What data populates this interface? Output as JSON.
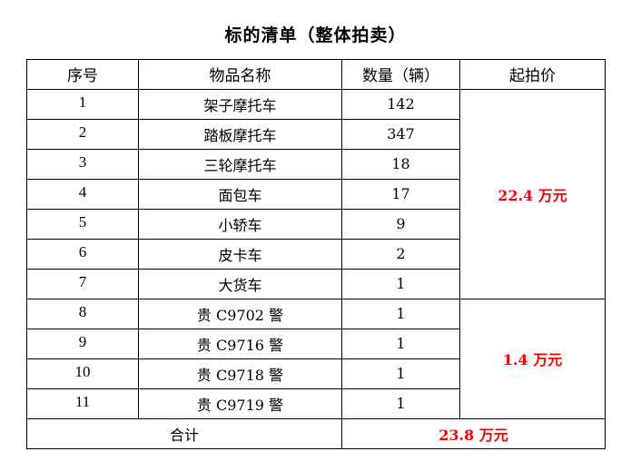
{
  "title": "标的清单（整体拍卖）",
  "headers": {
    "index": "序号",
    "name": "物品名称",
    "quantity": "数量（辆）",
    "price": "起拍价"
  },
  "rows": [
    {
      "index": "1",
      "name": "架子摩托车",
      "quantity": "142"
    },
    {
      "index": "2",
      "name": "踏板摩托车",
      "quantity": "347"
    },
    {
      "index": "3",
      "name": "三轮摩托车",
      "quantity": "18"
    },
    {
      "index": "4",
      "name": "面包车",
      "quantity": "17"
    },
    {
      "index": "5",
      "name": "小轿车",
      "quantity": "9"
    },
    {
      "index": "6",
      "name": "皮卡车",
      "quantity": "2"
    },
    {
      "index": "7",
      "name": "大货车",
      "quantity": "1"
    },
    {
      "index": "8",
      "name": "贵 C9702 警",
      "quantity": "1"
    },
    {
      "index": "9",
      "name": "贵 C9716 警",
      "quantity": "1"
    },
    {
      "index": "10",
      "name": "贵 C9718 警",
      "quantity": "1"
    },
    {
      "index": "11",
      "name": "贵 C9719 警",
      "quantity": "1"
    }
  ],
  "group_prices": [
    "22.4 万元",
    "1.4 万元"
  ],
  "total": {
    "label": "合计",
    "value": "23.8 万元"
  },
  "colors": {
    "price_text": "#ff0000"
  }
}
